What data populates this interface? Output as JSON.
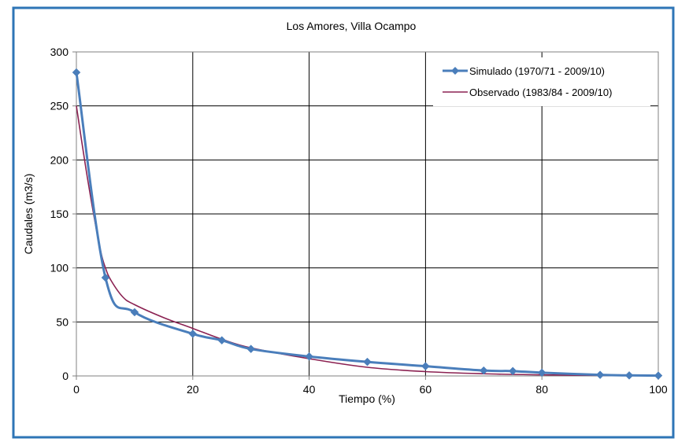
{
  "chart_data": {
    "type": "line",
    "title": "Los Amores, Villa Ocampo",
    "xlabel": "Tiempo (%)",
    "ylabel": "Caudales (m3/s)",
    "xlim": [
      0,
      100
    ],
    "ylim": [
      0,
      300
    ],
    "x_ticks": [
      "0",
      "20",
      "40",
      "60",
      "80",
      "100"
    ],
    "y_ticks": [
      "0",
      "50",
      "100",
      "150",
      "200",
      "250",
      "300"
    ],
    "grid": true,
    "legend_position": "top-right",
    "series": [
      {
        "name": "Simulado (1970/71  - 2009/10)",
        "color": "#4a7ebb",
        "marker": "diamond",
        "x": [
          0,
          5,
          10,
          20,
          25,
          30,
          40,
          50,
          60,
          70,
          75,
          80,
          90,
          95,
          100
        ],
        "y": [
          281,
          91,
          59,
          39,
          33,
          25,
          18,
          13,
          9,
          5,
          4.5,
          3,
          1,
          0.5,
          0.3
        ]
      },
      {
        "name": "Observado (1983/84 - 2009/10)",
        "color": "#8b2252",
        "marker": "none",
        "x": [
          0,
          2,
          4,
          5,
          6,
          8,
          10,
          15,
          20,
          25,
          30,
          40,
          50,
          60,
          70,
          80,
          90,
          100
        ],
        "y": [
          250,
          180,
          120,
          100,
          88,
          73,
          66,
          54,
          44,
          34,
          26,
          16,
          8,
          4,
          2,
          1,
          0.5,
          0.2
        ]
      }
    ]
  },
  "colors": {
    "frame_border": "#2e75b6",
    "plot_border": "#808080",
    "grid": "#000000"
  }
}
